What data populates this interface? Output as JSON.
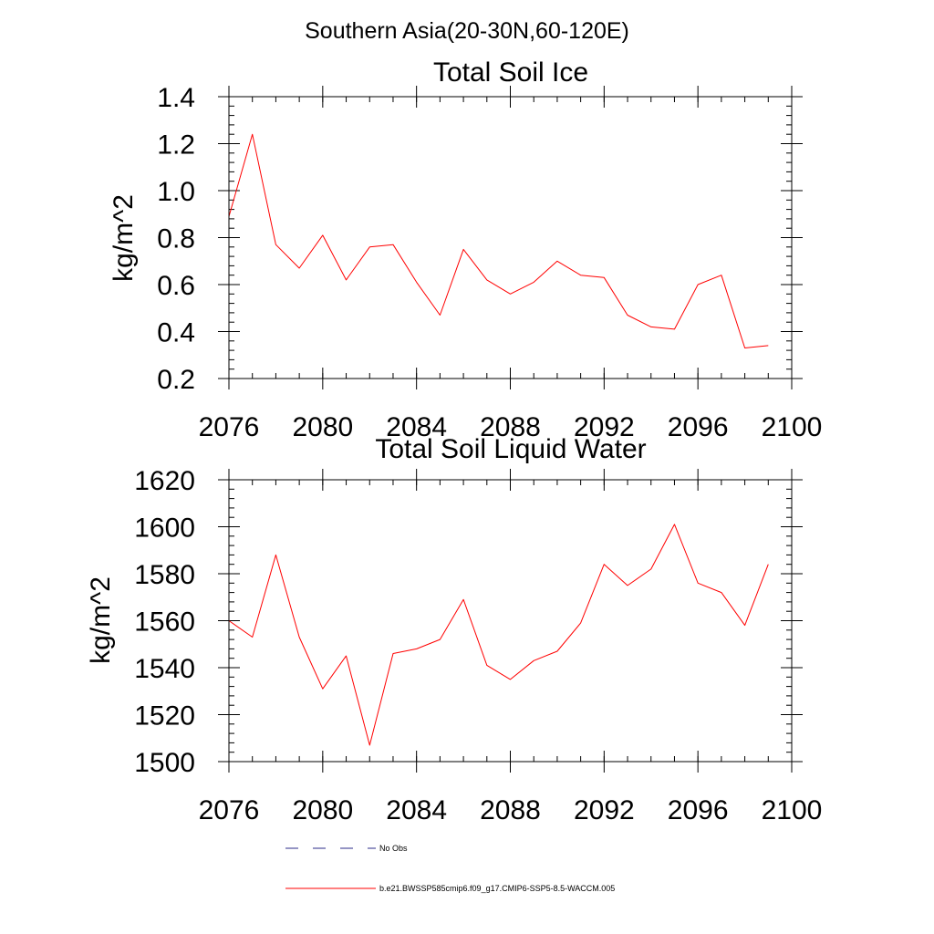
{
  "figure": {
    "suptitle": "Southern Asia(20-30N,60-120E)"
  },
  "chart_data": [
    {
      "type": "line",
      "title": "Total Soil Ice",
      "xlabel": "",
      "ylabel": "kg/m^2",
      "xlim": [
        2076,
        2100
      ],
      "ylim": [
        0.2,
        1.4
      ],
      "x_ticks": [
        2076,
        2080,
        2084,
        2088,
        2092,
        2096,
        2100
      ],
      "x_tick_labels": [
        "2076",
        "2080",
        "2084",
        "2088",
        "2092",
        "2096",
        "2100"
      ],
      "y_ticks": [
        0.2,
        0.4,
        0.6,
        0.8,
        1.0,
        1.2,
        1.4
      ],
      "y_tick_labels": [
        "0.2",
        "0.4",
        "0.6",
        "0.8",
        "1.0",
        "1.2",
        "1.4"
      ],
      "x_minor_step": 1,
      "y_minor_step": 0.04,
      "x": [
        2076,
        2077,
        2078,
        2079,
        2080,
        2081,
        2082,
        2083,
        2084,
        2085,
        2086,
        2087,
        2088,
        2089,
        2090,
        2091,
        2092,
        2093,
        2094,
        2095,
        2096,
        2097,
        2098,
        2099
      ],
      "series": [
        {
          "color": "#ff0000",
          "values": [
            0.89,
            1.24,
            0.77,
            0.67,
            0.81,
            0.62,
            0.76,
            0.77,
            0.61,
            0.47,
            0.75,
            0.62,
            0.56,
            0.61,
            0.7,
            0.64,
            0.63,
            0.47,
            0.42,
            0.41,
            0.6,
            0.64,
            0.33,
            0.34
          ]
        }
      ],
      "grid": false
    },
    {
      "type": "line",
      "title": "Total Soil Liquid Water",
      "xlabel": "",
      "ylabel": "kg/m^2",
      "xlim": [
        2076,
        2100
      ],
      "ylim": [
        1500,
        1620
      ],
      "x_ticks": [
        2076,
        2080,
        2084,
        2088,
        2092,
        2096,
        2100
      ],
      "x_tick_labels": [
        "2076",
        "2080",
        "2084",
        "2088",
        "2092",
        "2096",
        "2100"
      ],
      "y_ticks": [
        1500,
        1520,
        1540,
        1560,
        1580,
        1600,
        1620
      ],
      "y_tick_labels": [
        "1500",
        "1520",
        "1540",
        "1560",
        "1580",
        "1600",
        "1620"
      ],
      "x_minor_step": 1,
      "y_minor_step": 4,
      "x": [
        2076,
        2077,
        2078,
        2079,
        2080,
        2081,
        2082,
        2083,
        2084,
        2085,
        2086,
        2087,
        2088,
        2089,
        2090,
        2091,
        2092,
        2093,
        2094,
        2095,
        2096,
        2097,
        2098,
        2099
      ],
      "series": [
        {
          "color": "#ff0000",
          "values": [
            1560,
            1553,
            1588,
            1553,
            1531,
            1545,
            1507,
            1546,
            1548,
            1552,
            1569,
            1541,
            1535,
            1543,
            1547,
            1559,
            1584,
            1575,
            1582,
            1601,
            1576,
            1572,
            1558,
            1584
          ]
        }
      ],
      "grid": false
    }
  ],
  "legend": {
    "position": "bottom",
    "items": [
      {
        "label": "No Obs",
        "color": "#2b2b8a",
        "style": "dashed"
      },
      {
        "label": "b.e21.BWSSP585cmip6.f09_g17.CMIP6-SSP5-8.5-WACCM.005",
        "color": "#ff0000",
        "style": "solid"
      }
    ]
  }
}
